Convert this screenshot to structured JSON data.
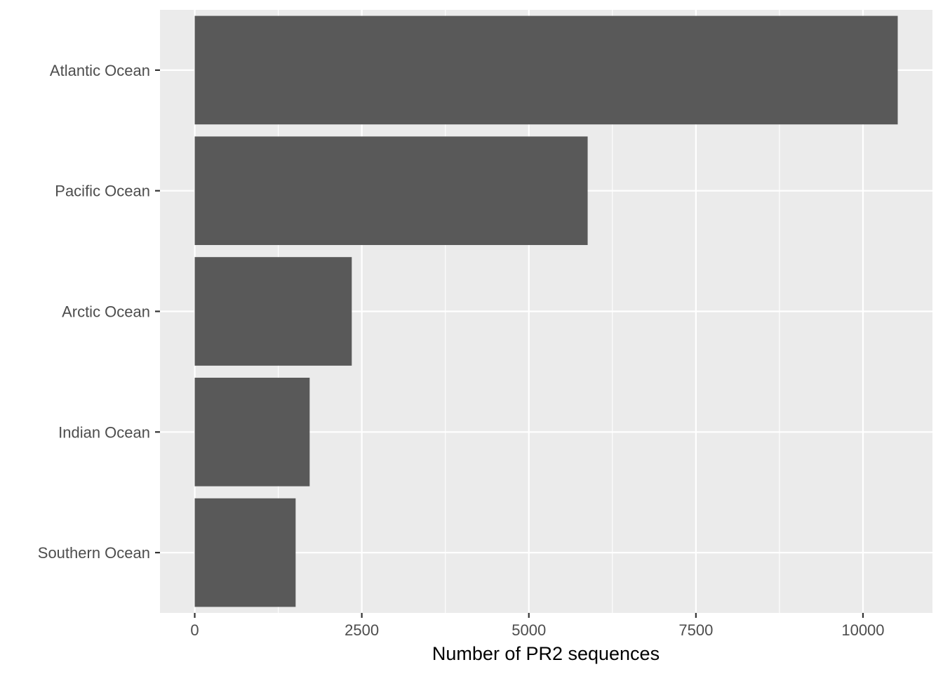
{
  "chart_data": {
    "type": "bar",
    "orientation": "horizontal",
    "categories": [
      "Atlantic Ocean",
      "Pacific Ocean",
      "Arctic Ocean",
      "Indian Ocean",
      "Southern Ocean"
    ],
    "values": [
      10520,
      5880,
      2350,
      1720,
      1510
    ],
    "title": "",
    "xlabel": "Number of PR2 sequences",
    "ylabel": "",
    "xlim": [
      -520,
      11040
    ],
    "xticks": [
      0,
      2500,
      5000,
      7500,
      10000
    ],
    "xtick_labels": [
      "0",
      "2500",
      "5000",
      "7500",
      "10000"
    ],
    "grid": true,
    "legend": "none",
    "colors": {
      "bar": "#595959",
      "panel": "#ebebeb",
      "grid": "#ffffff",
      "tick_text": "#4d4d4d",
      "axis_title": "#000000"
    }
  }
}
